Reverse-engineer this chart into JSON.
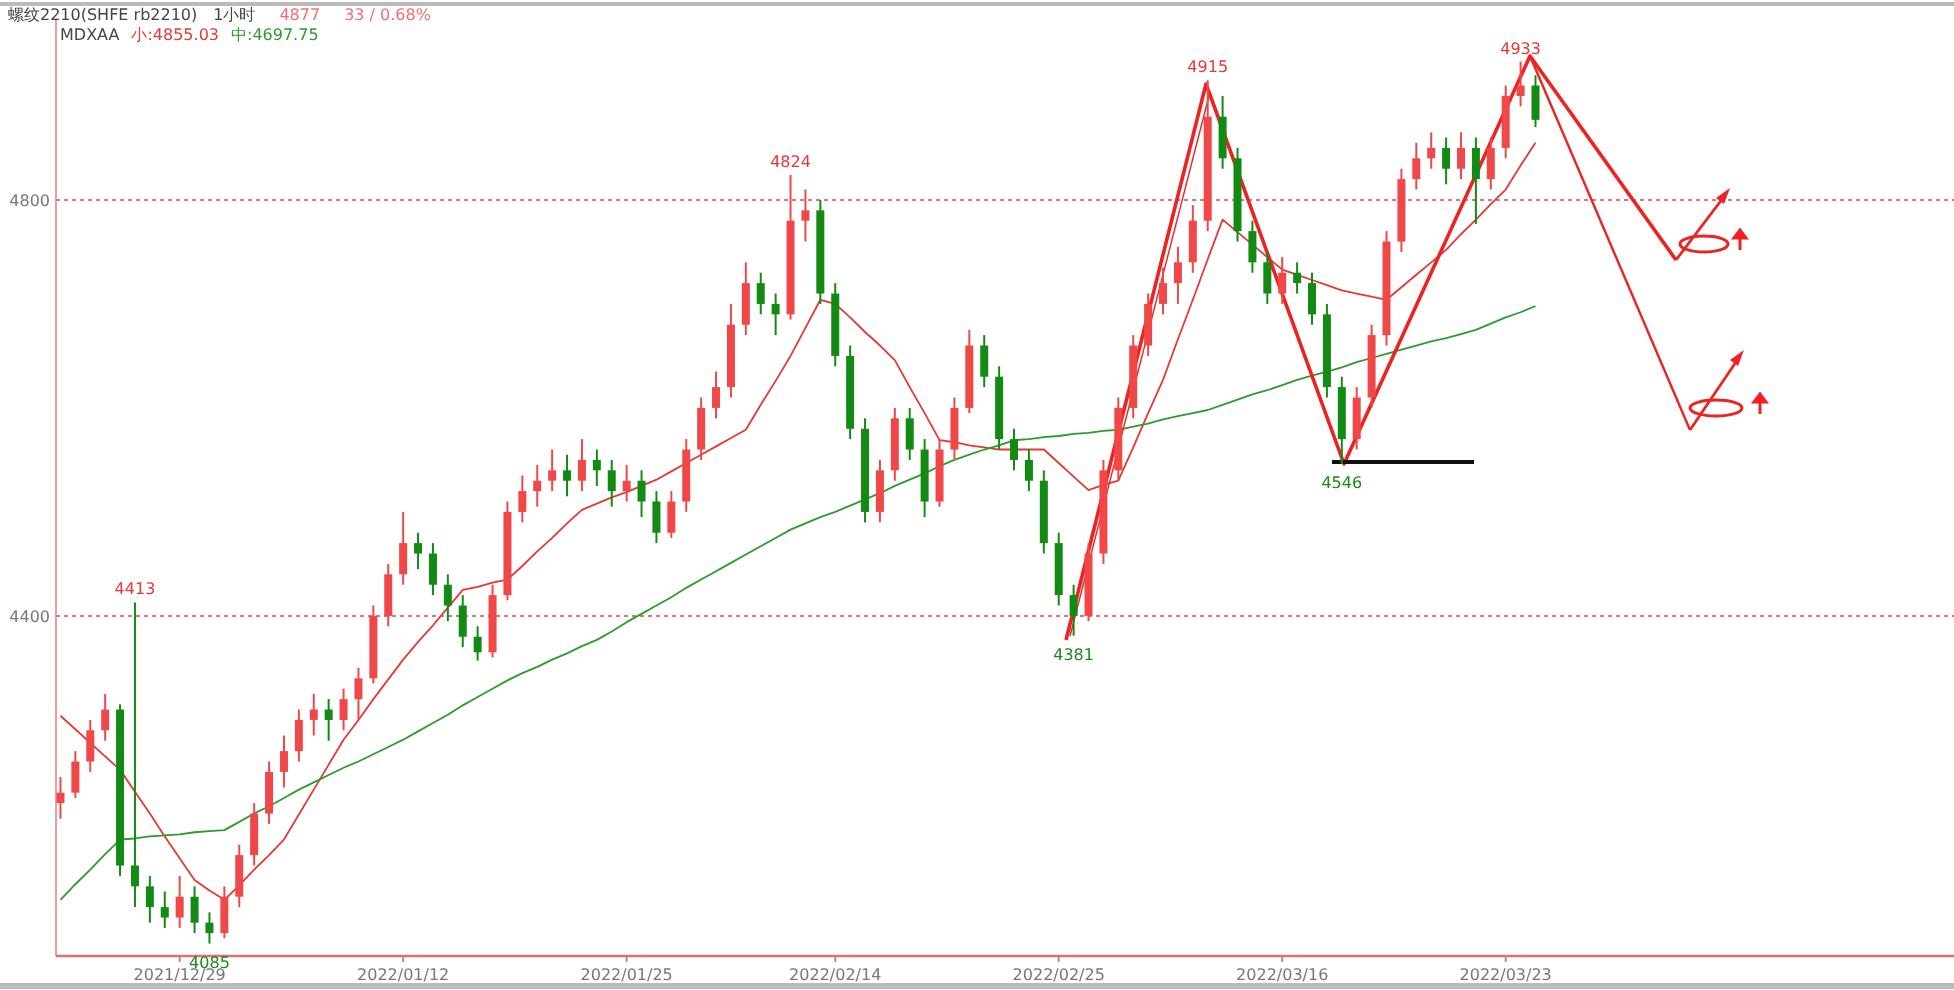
{
  "chart_data": {
    "type": "candlestick",
    "title": "螺纹2210(SHFE rb2210)",
    "subtitle": "1小时",
    "annotations": [
      "4877",
      "33 / 0.68%",
      {
        "text": "4413",
        "y": 4413
      },
      {
        "text": "4085",
        "y": 4085
      },
      {
        "text": "4824",
        "y": 4824
      },
      {
        "text": "4381",
        "y": 4381
      },
      {
        "text": "4915",
        "y": 4915
      },
      {
        "text": "4546",
        "y": 4546
      },
      {
        "text": "4933",
        "y": 4933
      }
    ],
    "categories": [
      null,
      null,
      null,
      null,
      null,
      null,
      null,
      null,
      "2021/12/29",
      null,
      null,
      null,
      null,
      null,
      null,
      null,
      null,
      null,
      null,
      null,
      null,
      null,
      null,
      "2022/01/12",
      null,
      null,
      null,
      null,
      null,
      null,
      null,
      null,
      null,
      null,
      null,
      null,
      null,
      null,
      "2022/01/25",
      null,
      null,
      null,
      null,
      null,
      null,
      null,
      null,
      null,
      null,
      null,
      null,
      null,
      "2022/02/14",
      null,
      null,
      null,
      null,
      null,
      null,
      null,
      null,
      null,
      null,
      null,
      null,
      null,
      null,
      "2022/02/25",
      null,
      null,
      null,
      null,
      null,
      null,
      null,
      null,
      null,
      null,
      null,
      null,
      null,
      null,
      "2022/03/16",
      null,
      null,
      null,
      null,
      null,
      null,
      null,
      null,
      null,
      null,
      null,
      null,
      null,
      null,
      "2022/03/23",
      null,
      null
    ],
    "ohlc": [
      [
        4220,
        4245,
        4205,
        4230
      ],
      [
        4230,
        4270,
        4225,
        4260
      ],
      [
        4260,
        4300,
        4250,
        4290
      ],
      [
        4290,
        4325,
        4280,
        4310
      ],
      [
        4310,
        4315,
        4150,
        4160
      ],
      [
        4160,
        4413,
        4120,
        4140
      ],
      [
        4140,
        4150,
        4105,
        4120
      ],
      [
        4120,
        4135,
        4100,
        4110
      ],
      [
        4110,
        4150,
        4100,
        4130
      ],
      [
        4130,
        4140,
        4095,
        4105
      ],
      [
        4105,
        4115,
        4085,
        4095
      ],
      [
        4095,
        4140,
        4090,
        4130
      ],
      [
        4130,
        4180,
        4120,
        4170
      ],
      [
        4170,
        4220,
        4160,
        4210
      ],
      [
        4210,
        4260,
        4200,
        4250
      ],
      [
        4250,
        4285,
        4235,
        4270
      ],
      [
        4270,
        4310,
        4260,
        4300
      ],
      [
        4300,
        4325,
        4285,
        4310
      ],
      [
        4310,
        4320,
        4280,
        4300
      ],
      [
        4300,
        4330,
        4290,
        4320
      ],
      [
        4320,
        4350,
        4300,
        4340
      ],
      [
        4340,
        4410,
        4335,
        4400
      ],
      [
        4400,
        4450,
        4390,
        4440
      ],
      [
        4440,
        4500,
        4430,
        4470
      ],
      [
        4470,
        4480,
        4445,
        4460
      ],
      [
        4460,
        4470,
        4420,
        4430
      ],
      [
        4430,
        4440,
        4395,
        4410
      ],
      [
        4410,
        4420,
        4370,
        4380
      ],
      [
        4380,
        4390,
        4357,
        4365
      ],
      [
        4365,
        4430,
        4360,
        4420
      ],
      [
        4420,
        4510,
        4415,
        4500
      ],
      [
        4500,
        4535,
        4490,
        4520
      ],
      [
        4520,
        4545,
        4505,
        4530
      ],
      [
        4530,
        4560,
        4520,
        4540
      ],
      [
        4540,
        4555,
        4515,
        4530
      ],
      [
        4530,
        4570,
        4520,
        4550
      ],
      [
        4550,
        4560,
        4525,
        4540
      ],
      [
        4540,
        4550,
        4505,
        4520
      ],
      [
        4520,
        4545,
        4510,
        4530
      ],
      [
        4530,
        4540,
        4495,
        4510
      ],
      [
        4510,
        4520,
        4470,
        4480
      ],
      [
        4480,
        4520,
        4475,
        4510
      ],
      [
        4510,
        4570,
        4500,
        4560
      ],
      [
        4560,
        4610,
        4550,
        4600
      ],
      [
        4600,
        4635,
        4590,
        4620
      ],
      [
        4620,
        4700,
        4610,
        4680
      ],
      [
        4680,
        4740,
        4670,
        4720
      ],
      [
        4720,
        4730,
        4690,
        4700
      ],
      [
        4700,
        4710,
        4670,
        4690
      ],
      [
        4690,
        4824,
        4685,
        4780
      ],
      [
        4780,
        4810,
        4760,
        4790
      ],
      [
        4790,
        4800,
        4700,
        4710
      ],
      [
        4710,
        4720,
        4640,
        4650
      ],
      [
        4650,
        4660,
        4570,
        4580
      ],
      [
        4580,
        4590,
        4490,
        4500
      ],
      [
        4500,
        4550,
        4490,
        4540
      ],
      [
        4540,
        4600,
        4530,
        4590
      ],
      [
        4590,
        4600,
        4550,
        4560
      ],
      [
        4560,
        4570,
        4495,
        4510
      ],
      [
        4510,
        4570,
        4505,
        4560
      ],
      [
        4560,
        4610,
        4550,
        4600
      ],
      [
        4600,
        4675,
        4595,
        4660
      ],
      [
        4660,
        4670,
        4620,
        4630
      ],
      [
        4630,
        4640,
        4560,
        4570
      ],
      [
        4570,
        4580,
        4540,
        4550
      ],
      [
        4550,
        4560,
        4520,
        4530
      ],
      [
        4530,
        4540,
        4460,
        4470
      ],
      [
        4470,
        4480,
        4410,
        4420
      ],
      [
        4420,
        4430,
        4381,
        4400
      ],
      [
        4400,
        4470,
        4395,
        4460
      ],
      [
        4460,
        4550,
        4450,
        4540
      ],
      [
        4540,
        4610,
        4530,
        4600
      ],
      [
        4600,
        4670,
        4590,
        4660
      ],
      [
        4660,
        4710,
        4650,
        4700
      ],
      [
        4700,
        4735,
        4690,
        4720
      ],
      [
        4720,
        4755,
        4700,
        4740
      ],
      [
        4740,
        4795,
        4730,
        4780
      ],
      [
        4780,
        4915,
        4770,
        4880
      ],
      [
        4880,
        4900,
        4830,
        4840
      ],
      [
        4840,
        4850,
        4760,
        4770
      ],
      [
        4770,
        4780,
        4730,
        4740
      ],
      [
        4740,
        4750,
        4700,
        4710
      ],
      [
        4710,
        4745,
        4700,
        4730
      ],
      [
        4730,
        4740,
        4710,
        4720
      ],
      [
        4720,
        4730,
        4680,
        4690
      ],
      [
        4690,
        4700,
        4610,
        4620
      ],
      [
        4620,
        4630,
        4546,
        4570
      ],
      [
        4570,
        4620,
        4560,
        4610
      ],
      [
        4610,
        4680,
        4600,
        4670
      ],
      [
        4670,
        4770,
        4660,
        4760
      ],
      [
        4760,
        4830,
        4750,
        4820
      ],
      [
        4820,
        4855,
        4810,
        4840
      ],
      [
        4840,
        4865,
        4830,
        4850
      ],
      [
        4850,
        4860,
        4815,
        4830
      ],
      [
        4830,
        4865,
        4820,
        4850
      ],
      [
        4850,
        4860,
        4777,
        4820
      ],
      [
        4820,
        4860,
        4810,
        4850
      ],
      [
        4850,
        4910,
        4840,
        4900
      ],
      [
        4900,
        4933,
        4890,
        4910
      ],
      [
        4910,
        4920,
        4870,
        4877
      ]
    ],
    "series": [
      {
        "name": "小:4855.03",
        "type": "line",
        "color": "#e53935",
        "values": [
          4304,
          4291,
          4278,
          4265,
          4252,
          4231,
          4210,
          4188,
          4167,
          4146,
          4136,
          4127,
          4141,
          4156,
          4170,
          4185,
          4209,
          4233,
          4257,
          4281,
          4300,
          4320,
          4339,
          4358,
          4375,
          4391,
          4408,
          4425,
          4428,
          4432,
          4435,
          4448,
          4462,
          4475,
          4489,
          4502,
          4508,
          4514,
          4519,
          4525,
          4531,
          4539,
          4547,
          4555,
          4563,
          4571,
          4579,
          4603,
          4626,
          4650,
          4677,
          4704,
          4700,
          4687,
          4673,
          4660,
          4646,
          4620,
          4595,
          4569,
          4567,
          4564,
          4562,
          4560,
          4560,
          4560,
          4560,
          4547,
          4534,
          4521,
          4526,
          4530,
          4562,
          4595,
          4627,
          4666,
          4704,
          4743,
          4781,
          4769,
          4757,
          4745,
          4733,
          4728,
          4723,
          4718,
          4713,
          4710,
          4707,
          4704,
          4716,
          4728,
          4740,
          4752,
          4767,
          4781,
          4796,
          4810,
          4833,
          4855
        ]
      },
      {
        "name": "中:4697.75",
        "type": "line",
        "color": "#2e9b2e",
        "values": [
          4127,
          4142,
          4156,
          4171,
          4185,
          4186,
          4188,
          4189,
          4190,
          4192,
          4193,
          4194,
          4202,
          4210,
          4217,
          4225,
          4233,
          4240,
          4247,
          4254,
          4260,
          4267,
          4274,
          4281,
          4289,
          4297,
          4305,
          4314,
          4322,
          4330,
          4338,
          4345,
          4351,
          4358,
          4364,
          4371,
          4377,
          4385,
          4394,
          4402,
          4410,
          4418,
          4427,
          4435,
          4443,
          4451,
          4459,
          4467,
          4475,
          4483,
          4489,
          4495,
          4500,
          4506,
          4512,
          4518,
          4525,
          4531,
          4537,
          4544,
          4550,
          4555,
          4560,
          4564,
          4569,
          4570,
          4572,
          4573,
          4575,
          4576,
          4578,
          4579,
          4582,
          4585,
          4589,
          4592,
          4595,
          4598,
          4603,
          4608,
          4613,
          4617,
          4622,
          4627,
          4631,
          4635,
          4639,
          4644,
          4648,
          4652,
          4656,
          4660,
          4664,
          4667,
          4671,
          4675,
          4681,
          4687,
          4692,
          4698
        ]
      }
    ],
    "legend_title": "MDXAA",
    "legend": "top left",
    "ylim": [
      4073,
      4973
    ],
    "yticks": [
      4800,
      4400
    ],
    "grid": "y"
  }
}
